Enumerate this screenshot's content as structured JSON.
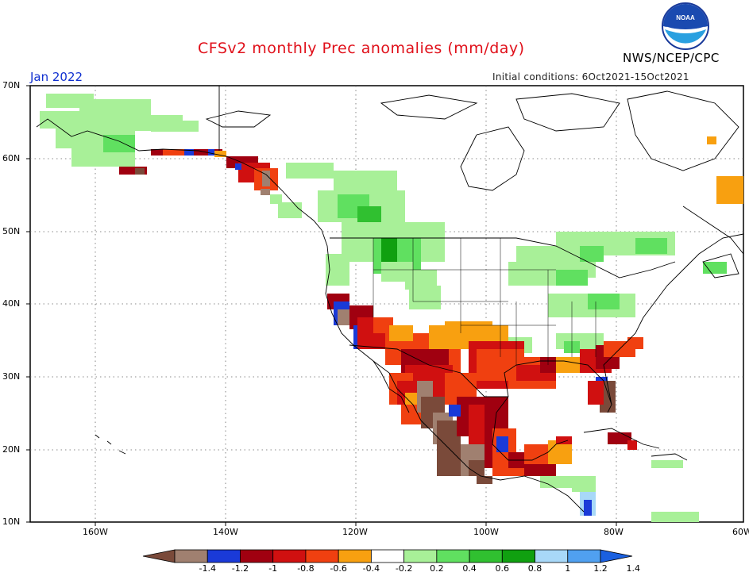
{
  "header": {
    "title": "CFSv2 monthly Prec anomalies (mm/day)",
    "org": "NWS/NCEP/CPC",
    "month": "Jan 2022",
    "initial_conditions": "Initial conditions: 6Oct2021-15Oct2021"
  },
  "logo": {
    "label": "NOAA",
    "icon": "noaa-logo-icon"
  },
  "axes": {
    "lat_labels": [
      "70N",
      "60N",
      "50N",
      "40N",
      "30N",
      "20N",
      "10N"
    ],
    "lon_labels": [
      "160W",
      "140W",
      "120W",
      "100W",
      "80W",
      "60W"
    ]
  },
  "colorbar": {
    "tick_labels": [
      "-1.4",
      "-1.2",
      "-1",
      "-0.8",
      "-0.6",
      "-0.4",
      "-0.2",
      "0.2",
      "0.4",
      "0.6",
      "0.8",
      "1",
      "1.2",
      "1.4"
    ],
    "colors": [
      "#7a4a3a",
      "#a08070",
      "#1a3ad8",
      "#a00010",
      "#d01010",
      "#f04010",
      "#f8a010",
      "#ffffff",
      "#a8f098",
      "#60e060",
      "#30c030",
      "#10a010",
      "#a8d8f8",
      "#50a0f0",
      "#1a60e0"
    ]
  },
  "anomaly_colors": {
    "dry_brown": "#7a4a3a",
    "dry_taupe": "#a08070",
    "blue": "#1a3ad8",
    "dark_red": "#a00010",
    "red": "#d01010",
    "orange_red": "#f04010",
    "orange": "#f8a010",
    "light_green": "#a8f098",
    "green": "#60e060",
    "mid_green": "#30c030",
    "dark_green": "#10a010",
    "light_blue": "#a8d8f8"
  }
}
